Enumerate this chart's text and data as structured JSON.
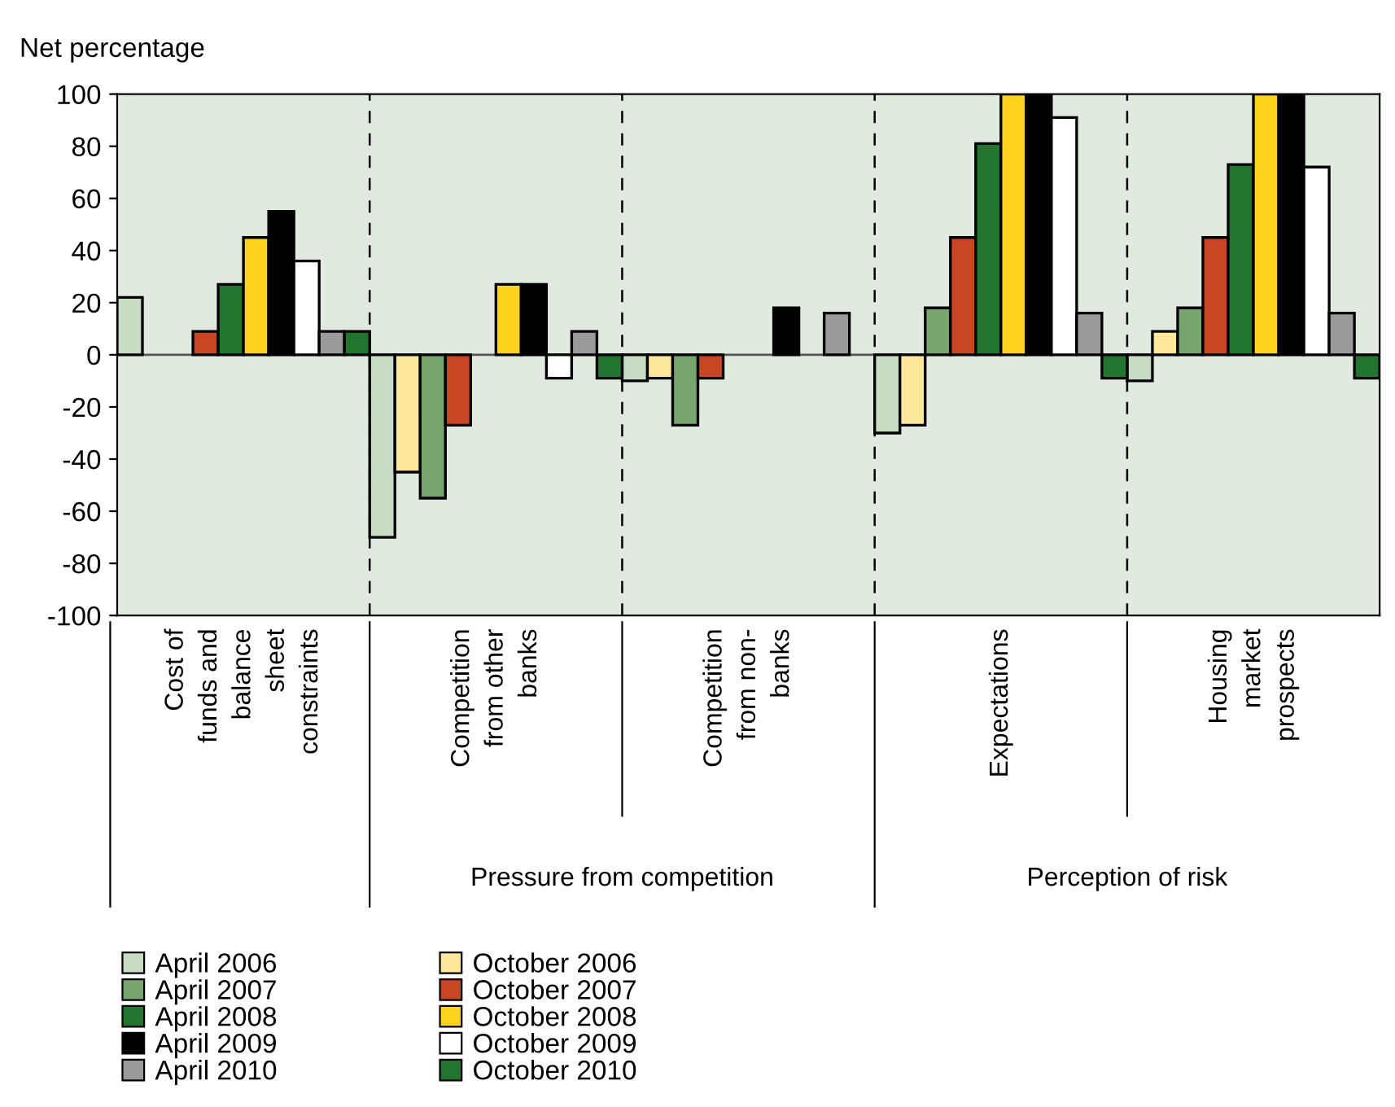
{
  "chart_data": {
    "type": "bar",
    "ylabel": "Net percentage",
    "categories": [
      "Cost of\nfunds and\nbalance\nsheet\nconstraints",
      "Competition\nfrom other\nbanks",
      "Competition\nfrom non-\nbanks",
      "Expectations",
      "Housing\nmarket\nprospects"
    ],
    "series": [
      {
        "name": "April 2006",
        "color": "#c8dcc4",
        "values": [
          22,
          -70,
          -10,
          -30,
          -10
        ]
      },
      {
        "name": "October 2006",
        "color": "#fde79a",
        "values": [
          null,
          -45,
          -9,
          -27,
          9
        ]
      },
      {
        "name": "April 2007",
        "color": "#78a56e",
        "values": [
          null,
          -55,
          -27,
          18,
          18
        ]
      },
      {
        "name": "October 2007",
        "color": "#c84624",
        "values": [
          9,
          -27,
          -9,
          45,
          45
        ]
      },
      {
        "name": "April 2008",
        "color": "#21752f",
        "values": [
          27,
          null,
          null,
          81,
          73
        ]
      },
      {
        "name": "October 2008",
        "color": "#ffd21e",
        "values": [
          45,
          27,
          null,
          100,
          100
        ]
      },
      {
        "name": "April 2009",
        "color": "#000000",
        "values": [
          55,
          27,
          18,
          100,
          100
        ]
      },
      {
        "name": "October 2009",
        "color": "#ffffff",
        "values": [
          36,
          -9,
          null,
          91,
          72
        ]
      },
      {
        "name": "April 2010",
        "color": "#9a9a9a",
        "values": [
          9,
          9,
          16,
          16,
          16
        ]
      },
      {
        "name": "October 2010",
        "color": "#21752f",
        "values": [
          9,
          -9,
          null,
          -9,
          -9
        ]
      }
    ],
    "ylim": [
      -100,
      100
    ],
    "yticks": [
      -100,
      -80,
      -60,
      -40,
      -20,
      0,
      20,
      40,
      60,
      80,
      100
    ],
    "grid": "x",
    "legend": "bottom",
    "annotations": [
      "Pressure from competition",
      "Perception of risk"
    ]
  }
}
